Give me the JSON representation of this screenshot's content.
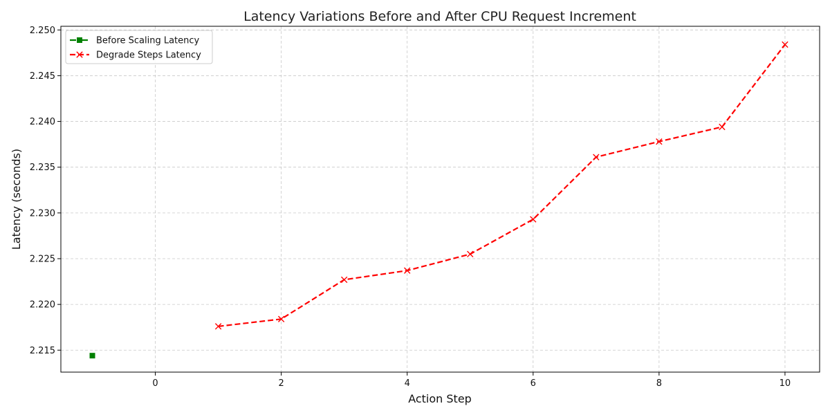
{
  "chart_data": {
    "type": "line",
    "title": "Latency Variations Before and After CPU Request Increment",
    "xlabel": "Action Step",
    "ylabel": "Latency (seconds)",
    "xlim": [
      -1.5,
      10.55
    ],
    "ylim": [
      2.2126,
      2.2504
    ],
    "x_ticks": [
      0,
      2,
      4,
      6,
      8,
      10
    ],
    "x_tick_labels": [
      "0",
      "2",
      "4",
      "6",
      "8",
      "10"
    ],
    "y_ticks": [
      2.215,
      2.22,
      2.225,
      2.23,
      2.235,
      2.24,
      2.245,
      2.25
    ],
    "y_tick_labels": [
      "2.215",
      "2.220",
      "2.225",
      "2.230",
      "2.235",
      "2.240",
      "2.245",
      "2.250"
    ],
    "grid": true,
    "legend_position": "top-left",
    "series": [
      {
        "name": "Before Scaling Latency",
        "color": "#008000",
        "marker": "square",
        "line_style": "dash-dot",
        "x": [
          -1
        ],
        "y": [
          2.2144
        ]
      },
      {
        "name": "Degrade Steps Latency",
        "color": "#ff0000",
        "marker": "x",
        "line_style": "dashed",
        "x": [
          1,
          2,
          3,
          4,
          5,
          6,
          7,
          8,
          9,
          10
        ],
        "y": [
          2.2176,
          2.2184,
          2.2227,
          2.2237,
          2.2255,
          2.2293,
          2.2361,
          2.2378,
          2.2394,
          2.2484
        ]
      }
    ]
  }
}
